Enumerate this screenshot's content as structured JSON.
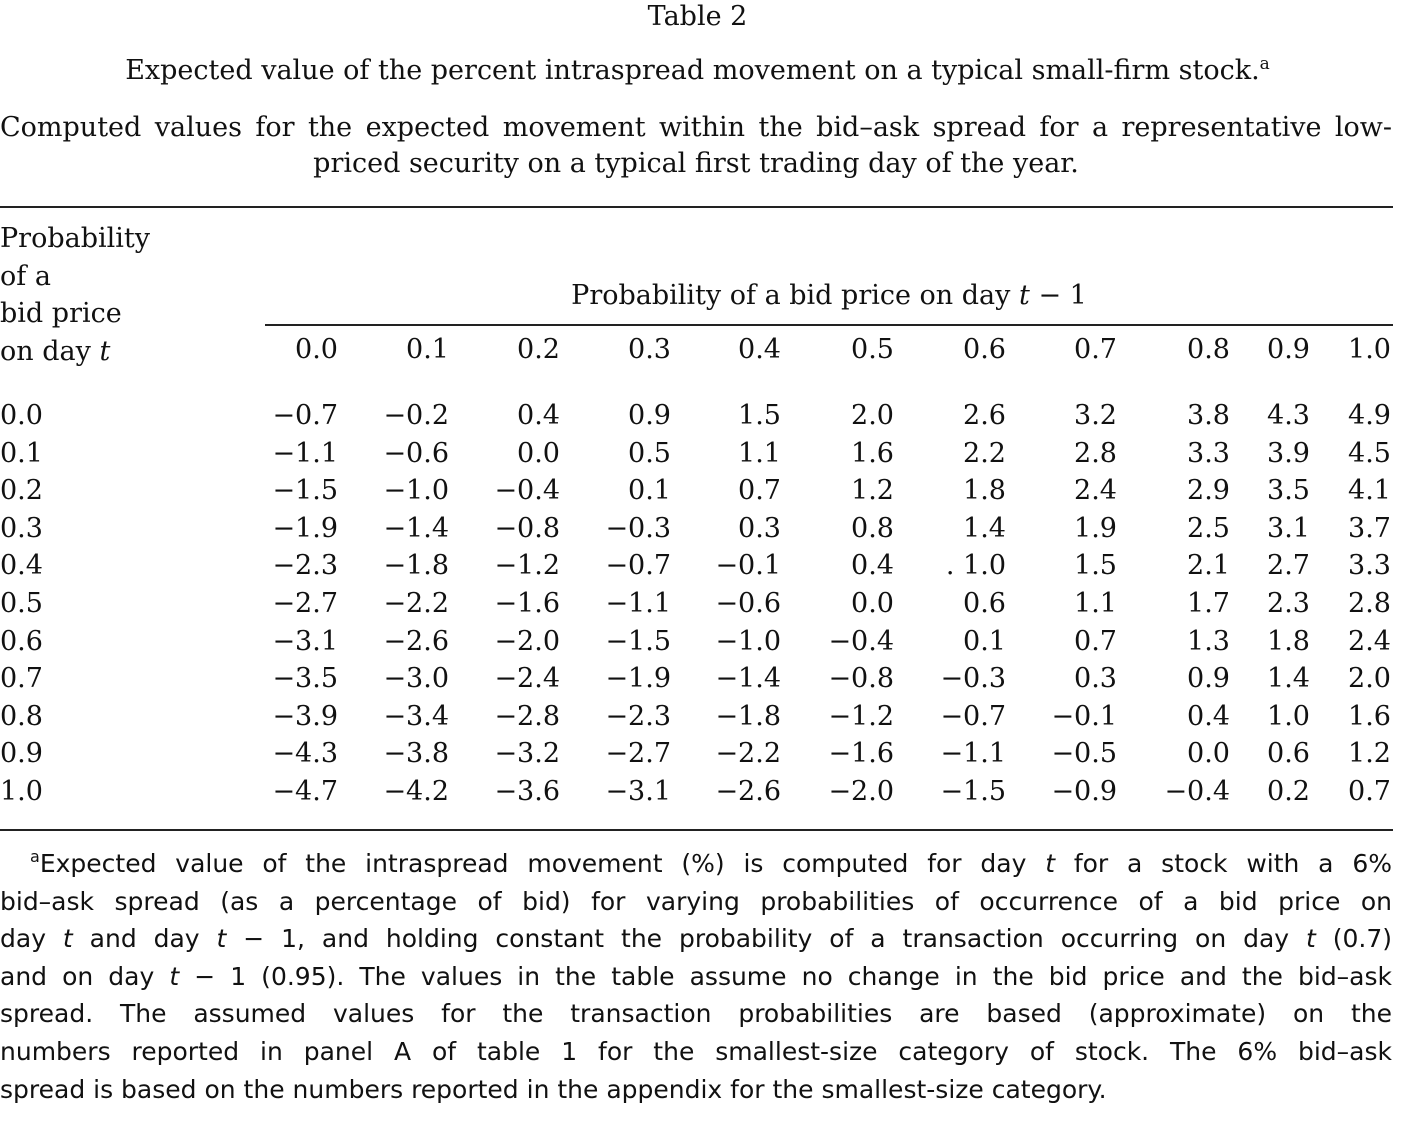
{
  "table_number": "Table 2",
  "title": "Expected value of the percent intraspread movement on a typical small-firm stock.",
  "title_note_marker": "a",
  "subtitle": "Computed values for the expected movement within the bid–ask spread for a representative low-priced security on a typical first trading day of the year.",
  "stub_header": [
    "Probability",
    "of a",
    "bid price",
    "on day t"
  ],
  "spanner_header": "Probability of a bid price on day t − 1",
  "column_headers": [
    "0.0",
    "0.1",
    "0.2",
    "0.3",
    "0.4",
    "0.5",
    "0.6",
    "0.7",
    "0.8",
    "0.9",
    "1.0"
  ],
  "rows": [
    {
      "label": "0.0",
      "values": [
        "−0.7",
        "−0.2",
        "0.4",
        "0.9",
        "1.5",
        "2.0",
        "2.6",
        "3.2",
        "3.8",
        "4.3",
        "4.9"
      ]
    },
    {
      "label": "0.1",
      "values": [
        "−1.1",
        "−0.6",
        "0.0",
        "0.5",
        "1.1",
        "1.6",
        "2.2",
        "2.8",
        "3.3",
        "3.9",
        "4.5"
      ]
    },
    {
      "label": "0.2",
      "values": [
        "−1.5",
        "−1.0",
        "−0.4",
        "0.1",
        "0.7",
        "1.2",
        "1.8",
        "2.4",
        "2.9",
        "3.5",
        "4.1"
      ]
    },
    {
      "label": "0.3",
      "values": [
        "−1.9",
        "−1.4",
        "−0.8",
        "−0.3",
        "0.3",
        "0.8",
        "1.4",
        "1.9",
        "2.5",
        "3.1",
        "3.7"
      ]
    },
    {
      "label": "0.4",
      "values": [
        "−2.3",
        "−1.8",
        "−1.2",
        "−0.7",
        "−0.1",
        "0.4",
        ". 1.0",
        "1.5",
        "2.1",
        "2.7",
        "3.3"
      ]
    },
    {
      "label": "0.5",
      "values": [
        "−2.7",
        "−2.2",
        "−1.6",
        "−1.1",
        "−0.6",
        "0.0",
        "0.6",
        "1.1",
        "1.7",
        "2.3",
        "2.8"
      ]
    },
    {
      "label": "0.6",
      "values": [
        "−3.1",
        "−2.6",
        "−2.0",
        "−1.5",
        "−1.0",
        "−0.4",
        "0.1",
        "0.7",
        "1.3",
        "1.8",
        "2.4"
      ]
    },
    {
      "label": "0.7",
      "values": [
        "−3.5",
        "−3.0",
        "−2.4",
        "−1.9",
        "−1.4",
        "−0.8",
        "−0.3",
        "0.3",
        "0.9",
        "1.4",
        "2.0"
      ]
    },
    {
      "label": "0.8",
      "values": [
        "−3.9",
        "−3.4",
        "−2.8",
        "−2.3",
        "−1.8",
        "−1.2",
        "−0.7",
        "−0.1",
        "0.4",
        "1.0",
        "1.6"
      ]
    },
    {
      "label": "0.9",
      "values": [
        "−4.3",
        "−3.8",
        "−3.2",
        "−2.7",
        "−2.2",
        "−1.6",
        "−1.1",
        "−0.5",
        "0.0",
        "0.6",
        "1.2"
      ]
    },
    {
      "label": "1.0",
      "values": [
        "−4.7",
        "−4.2",
        "−3.6",
        "−3.1",
        "−2.6",
        "−2.0",
        "−1.5",
        "−0.9",
        "−0.4",
        "0.2",
        "0.7"
      ]
    }
  ],
  "footnote_marker": "a",
  "footnote_lines": [
    "Expected value of the intraspread movement (%) is computed for day t for a stock with a 6%",
    "bid–ask spread (as a percentage of bid) for varying probabilities of occurrence of a bid price on",
    "day t and day t − 1, and holding constant the probability of a transaction occurring on day t (0.7)",
    "and on day t − 1 (0.95). The values in the table assume no change in the bid price and the bid–ask",
    "spread. The assumed values for the transaction probabilities are based (approximate) on the",
    "numbers reported in panel A of table 1 for the smallest-size category of stock. The 6% bid–ask",
    "spread is based on the numbers reported in the appendix for the smallest-size category."
  ]
}
